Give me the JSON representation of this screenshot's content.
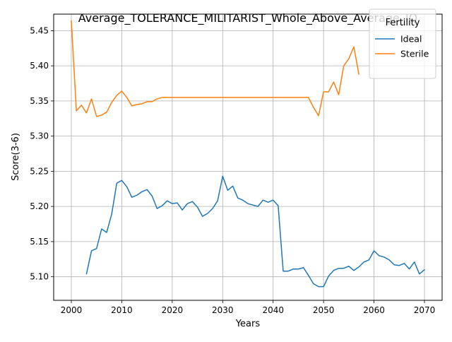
{
  "chart_data": {
    "type": "line",
    "title": "Average_TOLERANCE_MILITARIST_Whole_Above_Average_IQ",
    "xlabel": "Years",
    "ylabel": "Score(3-6)",
    "xlim": [
      1996.5,
      2073.5
    ],
    "ylim": [
      5.0665,
      5.4735
    ],
    "xticks": [
      2000,
      2010,
      2020,
      2030,
      2040,
      2050,
      2060,
      2070
    ],
    "xtick_labels": [
      "2000",
      "2010",
      "2020",
      "2030",
      "2040",
      "2050",
      "2060",
      "2070"
    ],
    "yticks": [
      5.1,
      5.15,
      5.2,
      5.25,
      5.3,
      5.35,
      5.4,
      5.45
    ],
    "ytick_labels": [
      "5.10",
      "5.15",
      "5.20",
      "5.25",
      "5.30",
      "5.35",
      "5.40",
      "5.45"
    ],
    "grid": true,
    "legend": {
      "title": "Fertility",
      "placement": "top-right"
    },
    "series": [
      {
        "name": "Ideal",
        "color": "#1f77b4",
        "x": [
          2003,
          2004,
          2005,
          2006,
          2007,
          2008,
          2009,
          2010,
          2011,
          2012,
          2013,
          2014,
          2015,
          2016,
          2017,
          2018,
          2019,
          2020,
          2021,
          2022,
          2023,
          2024,
          2025,
          2026,
          2027,
          2028,
          2029,
          2030,
          2031,
          2032,
          2033,
          2034,
          2035,
          2036,
          2037,
          2038,
          2039,
          2040,
          2041,
          2042,
          2043,
          2044,
          2045,
          2046,
          2047,
          2048,
          2049,
          2050,
          2051,
          2052,
          2053,
          2054,
          2055,
          2056,
          2057,
          2058,
          2059,
          2060,
          2061,
          2062,
          2063,
          2064,
          2065,
          2066,
          2067,
          2068,
          2069,
          2070
        ],
        "y": [
          5.104,
          5.137,
          5.14,
          5.168,
          5.163,
          5.189,
          5.233,
          5.237,
          5.228,
          5.213,
          5.216,
          5.221,
          5.224,
          5.215,
          5.197,
          5.201,
          5.208,
          5.204,
          5.205,
          5.195,
          5.204,
          5.207,
          5.199,
          5.186,
          5.19,
          5.197,
          5.208,
          5.243,
          5.223,
          5.229,
          5.212,
          5.209,
          5.204,
          5.202,
          5.2,
          5.209,
          5.206,
          5.209,
          5.201,
          5.108,
          5.108,
          5.111,
          5.111,
          5.113,
          5.102,
          5.09,
          5.086,
          5.086,
          5.101,
          5.109,
          5.112,
          5.112,
          5.115,
          5.109,
          5.114,
          5.121,
          5.124,
          5.137,
          5.13,
          5.128,
          5.124,
          5.117,
          5.116,
          5.119,
          5.111,
          5.121,
          5.104,
          5.11
        ]
      },
      {
        "name": "Sterile",
        "color": "#ff7f0e",
        "x": [
          2000,
          2001,
          2002,
          2003,
          2004,
          2005,
          2006,
          2007,
          2008,
          2009,
          2010,
          2011,
          2012,
          2013,
          2014,
          2015,
          2016,
          2017,
          2018,
          2019,
          2020,
          2021,
          2022,
          2023,
          2024,
          2025,
          2026,
          2027,
          2028,
          2029,
          2030,
          2031,
          2032,
          2033,
          2034,
          2035,
          2036,
          2037,
          2038,
          2039,
          2040,
          2041,
          2042,
          2043,
          2044,
          2045,
          2046,
          2047,
          2048,
          2049,
          2050,
          2051,
          2052,
          2053,
          2054,
          2055,
          2056,
          2057
        ],
        "y": [
          5.464,
          5.336,
          5.344,
          5.333,
          5.353,
          5.328,
          5.33,
          5.334,
          5.348,
          5.358,
          5.364,
          5.355,
          5.343,
          5.345,
          5.346,
          5.349,
          5.349,
          5.353,
          5.355,
          5.355,
          5.355,
          5.355,
          5.355,
          5.355,
          5.355,
          5.355,
          5.355,
          5.355,
          5.355,
          5.355,
          5.355,
          5.355,
          5.355,
          5.355,
          5.355,
          5.355,
          5.355,
          5.355,
          5.355,
          5.355,
          5.355,
          5.355,
          5.355,
          5.355,
          5.355,
          5.355,
          5.355,
          5.355,
          5.341,
          5.329,
          5.363,
          5.363,
          5.377,
          5.359,
          5.4,
          5.41,
          5.427,
          5.388
        ]
      }
    ]
  }
}
